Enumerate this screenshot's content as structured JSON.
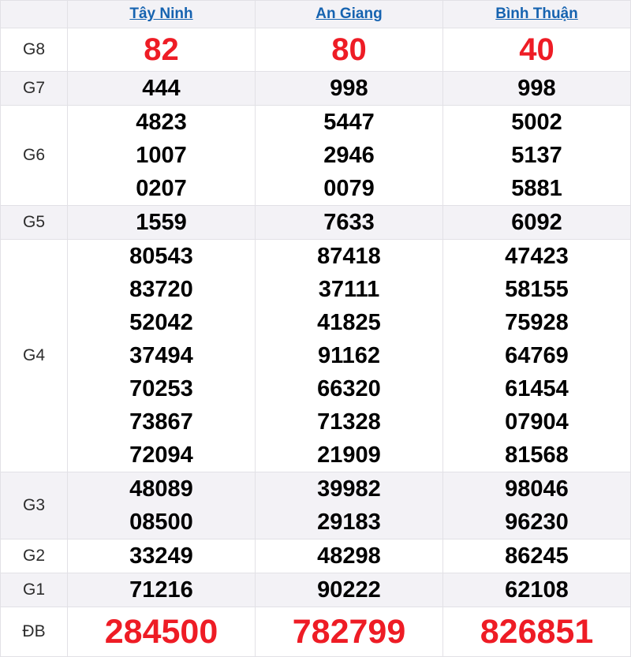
{
  "colors": {
    "link_blue": "#1663b0",
    "highlight_red": "#ee1c25",
    "shaded_row_bg": "#f3f2f6",
    "border": "#e2e1e6",
    "number_black": "#000000"
  },
  "header": {
    "corner": "",
    "columns": [
      "Tây Ninh",
      "An Giang",
      "Bình Thuận"
    ]
  },
  "rows": [
    {
      "id": "g8",
      "label": "G8",
      "shaded": false,
      "highlight": true,
      "cells": [
        [
          "82"
        ],
        [
          "80"
        ],
        [
          "40"
        ]
      ]
    },
    {
      "id": "g7",
      "label": "G7",
      "shaded": true,
      "highlight": false,
      "cells": [
        [
          "444"
        ],
        [
          "998"
        ],
        [
          "998"
        ]
      ]
    },
    {
      "id": "g6",
      "label": "G6",
      "shaded": false,
      "highlight": false,
      "cells": [
        [
          "4823",
          "1007",
          "0207"
        ],
        [
          "5447",
          "2946",
          "0079"
        ],
        [
          "5002",
          "5137",
          "5881"
        ]
      ]
    },
    {
      "id": "g5",
      "label": "G5",
      "shaded": true,
      "highlight": false,
      "cells": [
        [
          "1559"
        ],
        [
          "7633"
        ],
        [
          "6092"
        ]
      ]
    },
    {
      "id": "g4",
      "label": "G4",
      "shaded": false,
      "highlight": false,
      "cells": [
        [
          "80543",
          "83720",
          "52042",
          "37494",
          "70253",
          "73867",
          "72094"
        ],
        [
          "87418",
          "37111",
          "41825",
          "91162",
          "66320",
          "71328",
          "21909"
        ],
        [
          "47423",
          "58155",
          "75928",
          "64769",
          "61454",
          "07904",
          "81568"
        ]
      ]
    },
    {
      "id": "g3",
      "label": "G3",
      "shaded": true,
      "highlight": false,
      "cells": [
        [
          "48089",
          "08500"
        ],
        [
          "39982",
          "29183"
        ],
        [
          "98046",
          "96230"
        ]
      ]
    },
    {
      "id": "g2",
      "label": "G2",
      "shaded": false,
      "highlight": false,
      "cells": [
        [
          "33249"
        ],
        [
          "48298"
        ],
        [
          "86245"
        ]
      ]
    },
    {
      "id": "g1",
      "label": "G1",
      "shaded": true,
      "highlight": false,
      "cells": [
        [
          "71216"
        ],
        [
          "90222"
        ],
        [
          "62108"
        ]
      ]
    },
    {
      "id": "db",
      "label": "ĐB",
      "shaded": false,
      "highlight": true,
      "cells": [
        [
          "284500"
        ],
        [
          "782799"
        ],
        [
          "826851"
        ]
      ]
    }
  ]
}
